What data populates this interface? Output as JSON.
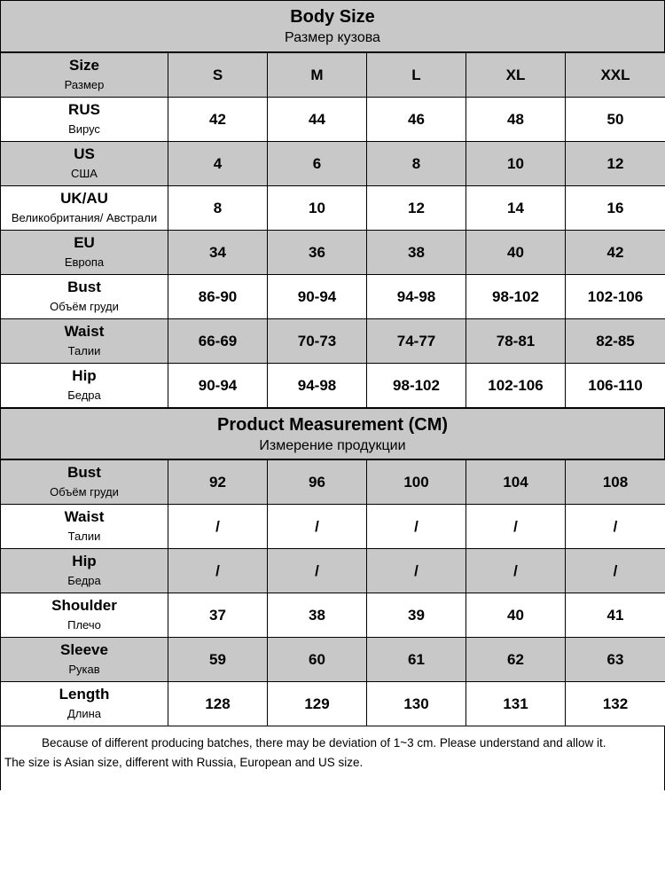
{
  "body_size": {
    "title": "Body Size",
    "subtitle": "Размер кузова",
    "header_row": {
      "en": "Size",
      "ru": "Размер",
      "sizes": [
        "S",
        "M",
        "L",
        "XL",
        "XXL"
      ]
    },
    "rows": [
      {
        "en": "RUS",
        "ru": "Вирус",
        "values": [
          "42",
          "44",
          "46",
          "48",
          "50"
        ]
      },
      {
        "en": "US",
        "ru": "США",
        "values": [
          "4",
          "6",
          "8",
          "10",
          "12"
        ]
      },
      {
        "en": "UK/AU",
        "ru": "Великобритания/ Австрали",
        "values": [
          "8",
          "10",
          "12",
          "14",
          "16"
        ]
      },
      {
        "en": "EU",
        "ru": "Европа",
        "values": [
          "34",
          "36",
          "38",
          "40",
          "42"
        ]
      },
      {
        "en": "Bust",
        "ru": "Объём груди",
        "values": [
          "86-90",
          "90-94",
          "94-98",
          "98-102",
          "102-106"
        ]
      },
      {
        "en": "Waist",
        "ru": "Талии",
        "values": [
          "66-69",
          "70-73",
          "74-77",
          "78-81",
          "82-85"
        ]
      },
      {
        "en": "Hip",
        "ru": "Бедра",
        "values": [
          "90-94",
          "94-98",
          "98-102",
          "102-106",
          "106-110"
        ]
      }
    ]
  },
  "product": {
    "title": "Product Measurement (CM)",
    "subtitle": "Измерение продукции",
    "rows": [
      {
        "en": "Bust",
        "ru": "Объём груди",
        "values": [
          "92",
          "96",
          "100",
          "104",
          "108"
        ]
      },
      {
        "en": "Waist",
        "ru": "Талии",
        "values": [
          "/",
          "/",
          "/",
          "/",
          "/"
        ]
      },
      {
        "en": "Hip",
        "ru": "Бедра",
        "values": [
          "/",
          "/",
          "/",
          "/",
          "/"
        ]
      },
      {
        "en": "Shoulder",
        "ru": "Плечо",
        "values": [
          "37",
          "38",
          "39",
          "40",
          "41"
        ]
      },
      {
        "en": "Sleeve",
        "ru": "Рукав",
        "values": [
          "59",
          "60",
          "61",
          "62",
          "63"
        ]
      },
      {
        "en": "Length",
        "ru": "Длина",
        "values": [
          "128",
          "129",
          "130",
          "131",
          "132"
        ]
      }
    ]
  },
  "notes": {
    "line1": "Because of different producing batches, there may be deviation of 1~3 cm. Please understand and allow it.",
    "line2": "The size is Asian size, different with Russia, European and US size."
  },
  "colors": {
    "shaded": "#c8c8c8",
    "border": "#000000",
    "background": "#ffffff"
  }
}
